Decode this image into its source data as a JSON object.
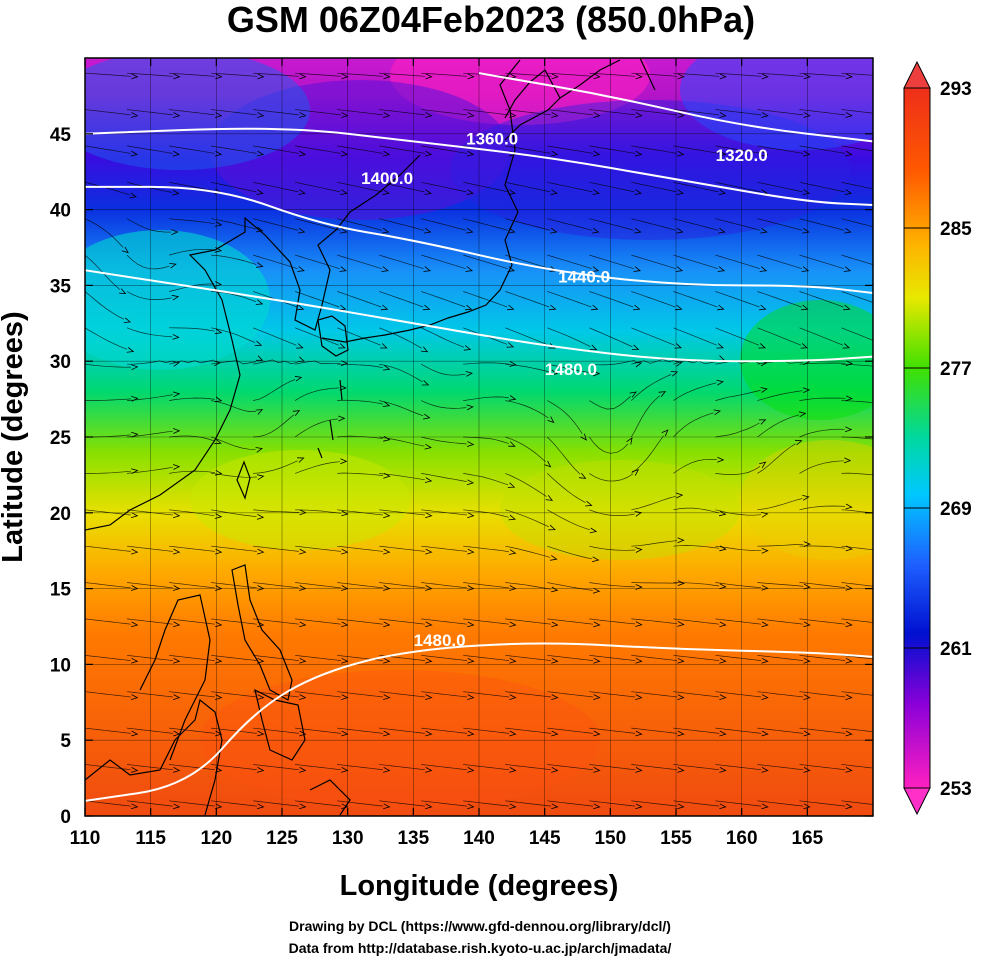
{
  "title": "GSM 06Z04Feb2023 (850.0hPa)",
  "credits": {
    "line1": "Drawing by DCL (https://www.gfd-dennou.org/library/dcl/)",
    "line2": "Data from http://database.rish.kyoto-u.ac.jp/arch/jmadata/"
  },
  "chart_data": {
    "type": "heatmap",
    "xlabel": "Longitude (degrees)",
    "ylabel": "Latitude  (degrees)",
    "xlim": [
      110,
      170
    ],
    "ylim": [
      0,
      50
    ],
    "xticks": [
      "110",
      "115",
      "120",
      "125",
      "130",
      "135",
      "140",
      "145",
      "150",
      "155",
      "160",
      "165"
    ],
    "yticks": [
      "0",
      "5",
      "10",
      "15",
      "20",
      "25",
      "30",
      "35",
      "40",
      "45"
    ],
    "colorbar": {
      "ticks": [
        "253",
        "261",
        "269",
        "277",
        "285",
        "293"
      ],
      "range": [
        253,
        293
      ],
      "colors": [
        "#ff20c0",
        "#8a00d8",
        "#0010d0",
        "#1e78ff",
        "#00d8ff",
        "#00e060",
        "#d8e800",
        "#ffb800",
        "#ff6a00",
        "#ee2e1a"
      ]
    },
    "contours": [
      {
        "label": "1320.0",
        "points": [
          [
            140,
            49
          ],
          [
            150,
            47.5
          ],
          [
            160,
            45.5
          ],
          [
            170,
            44.5
          ]
        ]
      },
      {
        "label": "1360.0",
        "points": [
          [
            110,
            45
          ],
          [
            125,
            45.5
          ],
          [
            135,
            44.5
          ],
          [
            145,
            43.5
          ],
          [
            155,
            42
          ],
          [
            165,
            40.5
          ],
          [
            170,
            40.3
          ]
        ]
      },
      {
        "label": "1400.0",
        "points": [
          [
            110,
            41.5
          ],
          [
            120,
            41.5
          ],
          [
            128,
            39
          ],
          [
            135,
            38
          ],
          [
            145,
            36
          ],
          [
            155,
            35
          ],
          [
            165,
            35
          ],
          [
            170,
            34.5
          ]
        ]
      },
      {
        "label": "1440.0",
        "points": [
          [
            110,
            36
          ],
          [
            125,
            34
          ],
          [
            135,
            32.5
          ],
          [
            145,
            31
          ],
          [
            155,
            30
          ],
          [
            165,
            30
          ],
          [
            170,
            30.3
          ]
        ]
      },
      {
        "label": "1480.0",
        "points": [
          [
            110,
            1
          ],
          [
            118,
            2
          ],
          [
            123,
            7
          ],
          [
            128,
            9.5
          ],
          [
            135,
            11
          ],
          [
            145,
            11.5
          ],
          [
            155,
            11
          ],
          [
            165,
            10.8
          ],
          [
            170,
            10.5
          ]
        ]
      }
    ],
    "contour_labels": [
      {
        "text": "1360.0",
        "x": 141,
        "y": 44.3
      },
      {
        "text": "1400.0",
        "x": 133,
        "y": 41.7
      },
      {
        "text": "1320.0",
        "x": 160,
        "y": 43.2
      },
      {
        "text": "1440.0",
        "x": 148,
        "y": 35.2
      },
      {
        "text": "1480.0",
        "x": 147,
        "y": 29.1
      },
      {
        "text": "1480.0",
        "x": 137,
        "y": 11.2
      }
    ]
  }
}
